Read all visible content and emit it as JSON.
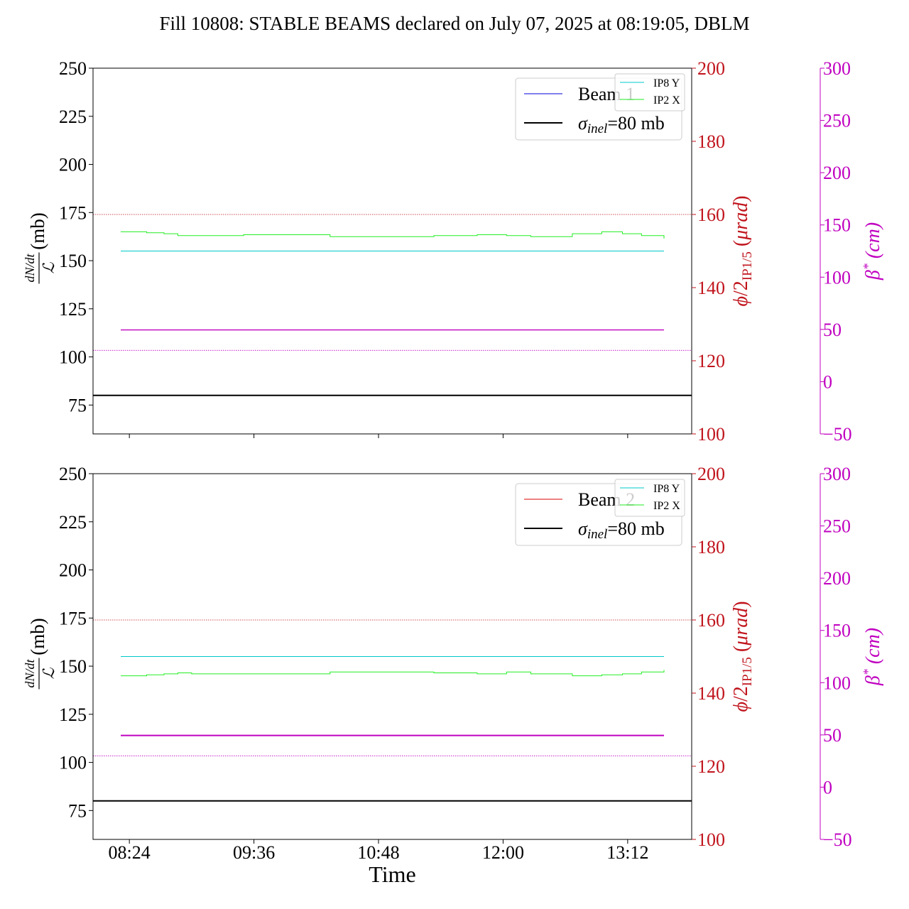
{
  "title": "Fill 10808: STABLE BEAMS declared on July 07, 2025 at 08:19:05, DBLM",
  "colors": {
    "left_axis": "#000000",
    "right_axis1": "#c0141c",
    "right_axis2": "#c000c0",
    "ip8y": "#00c8c8",
    "ip2x": "#22ee22",
    "beta": "#c000c0",
    "sigma": "#000000",
    "beam1": "#0000dd",
    "beam2": "#dd0000",
    "ref_red": "#c0141c",
    "ref_magenta": "#c000c0"
  },
  "chart_data": [
    {
      "type": "line",
      "panel": "beam1",
      "xlabel": "",
      "ylabel_left": "dN/dt / 𝓛 (mb)",
      "ylabel_right1": "φ/2 IP1/5 (μrad)",
      "ylabel_right2": "β* (cm)",
      "x_ticks": [
        "08:24",
        "09:36",
        "10:48",
        "12:00",
        "13:12"
      ],
      "x_tick_minutes": [
        504,
        576,
        648,
        720,
        792
      ],
      "xlim_minutes": [
        483,
        829
      ],
      "ylim_left": [
        60,
        250
      ],
      "yticks_left": [
        75,
        100,
        125,
        150,
        175,
        200,
        225,
        250
      ],
      "ylim_right1": [
        100,
        200
      ],
      "yticks_right1": [
        100,
        120,
        140,
        160,
        180,
        200
      ],
      "ylim_right2": [
        -50,
        300
      ],
      "yticks_right2": [
        -50,
        0,
        50,
        100,
        150,
        200,
        250,
        300
      ],
      "legend_main": [
        {
          "label": "Beam 1",
          "color": "#0000dd"
        },
        {
          "label": "σinel=80 mb",
          "color": "#000000"
        }
      ],
      "legend_small": [
        {
          "label": "IP8 Y",
          "color": "#00c8c8"
        },
        {
          "label": "IP2 X",
          "color": "#22ee22"
        }
      ],
      "series": [
        {
          "name": "IP8 Y",
          "axis": "left",
          "x": [
            499,
            813
          ],
          "y": [
            155,
            155
          ]
        },
        {
          "name": "IP2 X",
          "axis": "left",
          "step": true,
          "x": [
            499,
            514,
            524,
            532,
            570,
            594,
            620,
            650,
            680,
            705,
            712,
            722,
            736,
            760,
            777,
            789,
            800,
            813
          ],
          "y": [
            165,
            164.5,
            164,
            163,
            163.5,
            163.5,
            162.5,
            162.5,
            163,
            163.5,
            163.5,
            163,
            162.5,
            164,
            165,
            164,
            163,
            161.5
          ]
        },
        {
          "name": "β*",
          "axis": "left",
          "x": [
            499,
            813
          ],
          "y": [
            114,
            114
          ]
        },
        {
          "name": "σinel=80 mb",
          "axis": "left",
          "x": [
            483,
            829
          ],
          "y": [
            80,
            80
          ]
        },
        {
          "name": "φ/2 ref",
          "axis": "right1",
          "style": "dotted",
          "x": [
            483,
            829
          ],
          "y": [
            160,
            160
          ]
        },
        {
          "name": "β* ref",
          "axis": "right2",
          "style": "dotted",
          "x": [
            483,
            829
          ],
          "y": [
            30,
            30
          ]
        }
      ]
    },
    {
      "type": "line",
      "panel": "beam2",
      "xlabel": "Time",
      "ylabel_left": "dN/dt / 𝓛 (mb)",
      "ylabel_right1": "φ/2 IP1/5 (μrad)",
      "ylabel_right2": "β* (cm)",
      "x_ticks": [
        "08:24",
        "09:36",
        "10:48",
        "12:00",
        "13:12"
      ],
      "x_tick_minutes": [
        504,
        576,
        648,
        720,
        792
      ],
      "xlim_minutes": [
        483,
        829
      ],
      "ylim_left": [
        60,
        250
      ],
      "yticks_left": [
        75,
        100,
        125,
        150,
        175,
        200,
        225,
        250
      ],
      "ylim_right1": [
        100,
        200
      ],
      "yticks_right1": [
        100,
        120,
        140,
        160,
        180,
        200
      ],
      "ylim_right2": [
        -50,
        300
      ],
      "yticks_right2": [
        -50,
        0,
        50,
        100,
        150,
        200,
        250,
        300
      ],
      "legend_main": [
        {
          "label": "Beam 2",
          "color": "#dd0000"
        },
        {
          "label": "σinel=80 mb",
          "color": "#000000"
        }
      ],
      "legend_small": [
        {
          "label": "IP8 Y",
          "color": "#00c8c8"
        },
        {
          "label": "IP2 X",
          "color": "#22ee22"
        }
      ],
      "series": [
        {
          "name": "IP8 Y",
          "axis": "left",
          "x": [
            499,
            813
          ],
          "y": [
            155,
            155
          ]
        },
        {
          "name": "IP2 X",
          "axis": "left",
          "step": true,
          "x": [
            499,
            514,
            524,
            532,
            540,
            594,
            620,
            650,
            680,
            705,
            712,
            722,
            736,
            760,
            777,
            789,
            800,
            813
          ],
          "y": [
            145,
            145.5,
            146,
            146.5,
            146,
            146,
            147,
            147,
            146.5,
            146,
            146,
            147,
            146,
            145,
            145.5,
            146,
            147,
            148
          ]
        },
        {
          "name": "β*",
          "axis": "left",
          "x": [
            499,
            813
          ],
          "y": [
            114,
            114
          ]
        },
        {
          "name": "σinel=80 mb",
          "axis": "left",
          "x": [
            483,
            829
          ],
          "y": [
            80,
            80
          ]
        },
        {
          "name": "φ/2 ref",
          "axis": "right1",
          "style": "dotted",
          "x": [
            483,
            829
          ],
          "y": [
            160,
            160
          ]
        },
        {
          "name": "β* ref",
          "axis": "right2",
          "style": "dotted",
          "x": [
            483,
            829
          ],
          "y": [
            30,
            30
          ]
        }
      ]
    }
  ]
}
